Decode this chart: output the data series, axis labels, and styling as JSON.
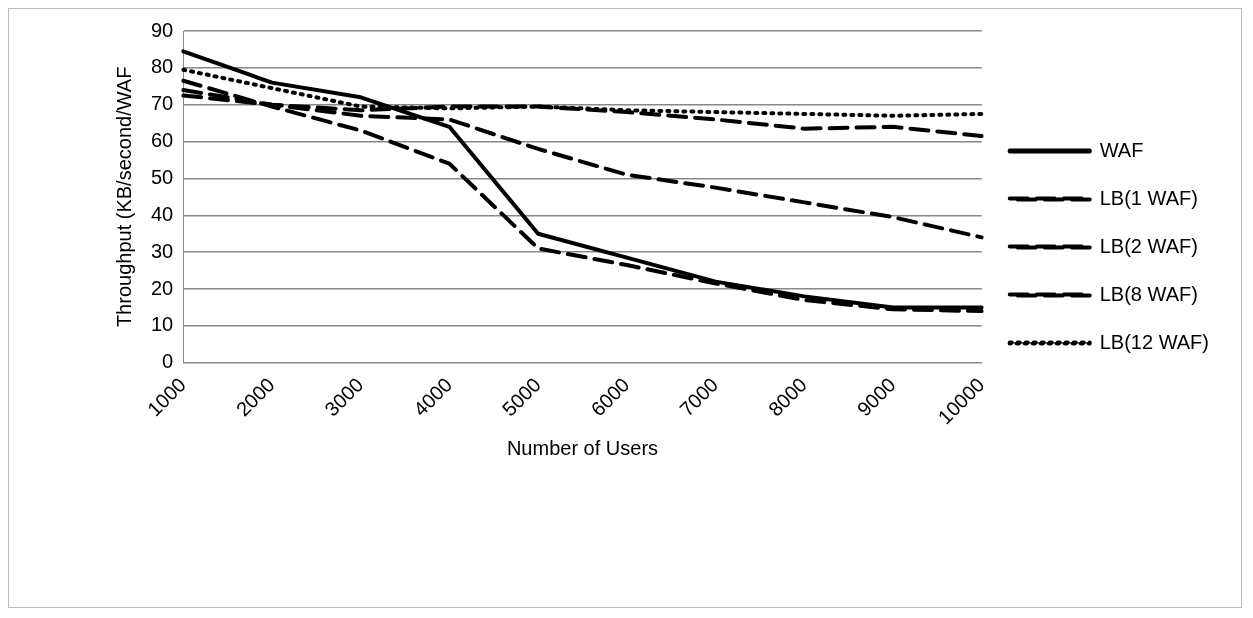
{
  "chart_data": {
    "type": "line",
    "xlabel": "Number of Users",
    "ylabel": "Throughput (KB/second/WAF",
    "categories": [
      "1000",
      "2000",
      "3000",
      "4000",
      "5000",
      "6000",
      "7000",
      "8000",
      "9000",
      "10000"
    ],
    "series": [
      {
        "name": "WAF",
        "color": "#000000",
        "line_style": "solid",
        "values": [
          84.5,
          76,
          72,
          64,
          35,
          28.5,
          22,
          18,
          15,
          15
        ]
      },
      {
        "name": "LB(1 WAF)",
        "color": "#000000",
        "line_style": "dashed",
        "values": [
          74,
          70,
          67,
          66,
          58,
          51,
          47.5,
          43.5,
          39.5,
          34
        ]
      },
      {
        "name": "LB(2 WAF)",
        "color": "#000000",
        "line_style": "dashed",
        "values": [
          76.5,
          69.5,
          63,
          54,
          31,
          26.5,
          21.5,
          17,
          14.5,
          14
        ]
      },
      {
        "name": "LB(8 WAF)",
        "color": "#000000",
        "line_style": "dashed",
        "values": [
          72.5,
          70,
          68.5,
          69.5,
          69.5,
          68,
          66,
          63.5,
          64,
          61.5
        ]
      },
      {
        "name": "LB(12 WAF)",
        "color": "#000000",
        "line_style": "dotted",
        "values": [
          79.5,
          74.5,
          69.5,
          69,
          69.5,
          68.5,
          68,
          67.5,
          67,
          67.5
        ]
      }
    ],
    "ylim": [
      0,
      90
    ],
    "yticks": [
      0,
      10,
      20,
      30,
      40,
      50,
      60,
      70,
      80,
      90
    ],
    "grid": "y",
    "legend": "right",
    "marker": "none"
  }
}
